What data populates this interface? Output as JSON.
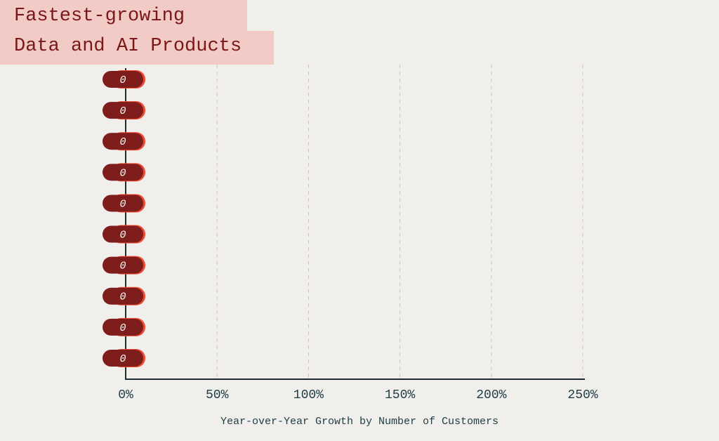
{
  "chart_data": {
    "type": "hbar",
    "title": [
      "Fastest-growing",
      "Data and AI Products"
    ],
    "xlabel": "Year-over-Year Growth by Number of Customers",
    "categories": [
      null,
      null,
      null,
      null,
      null,
      null,
      null,
      null,
      null,
      null
    ],
    "values": [
      0,
      0,
      0,
      0,
      0,
      0,
      0,
      0,
      0,
      0
    ],
    "color": "#7f1d1d",
    "edge_color": "#ee4b30",
    "xlim": [
      0,
      250
    ],
    "xticks": [
      {
        "value": 0,
        "label": "0%"
      },
      {
        "value": 50,
        "label": "50%"
      },
      {
        "value": 100,
        "label": "100%"
      },
      {
        "value": 150,
        "label": "150%"
      },
      {
        "value": 200,
        "label": "200%"
      },
      {
        "value": 250,
        "label": "250%"
      }
    ],
    "grid": true
  }
}
